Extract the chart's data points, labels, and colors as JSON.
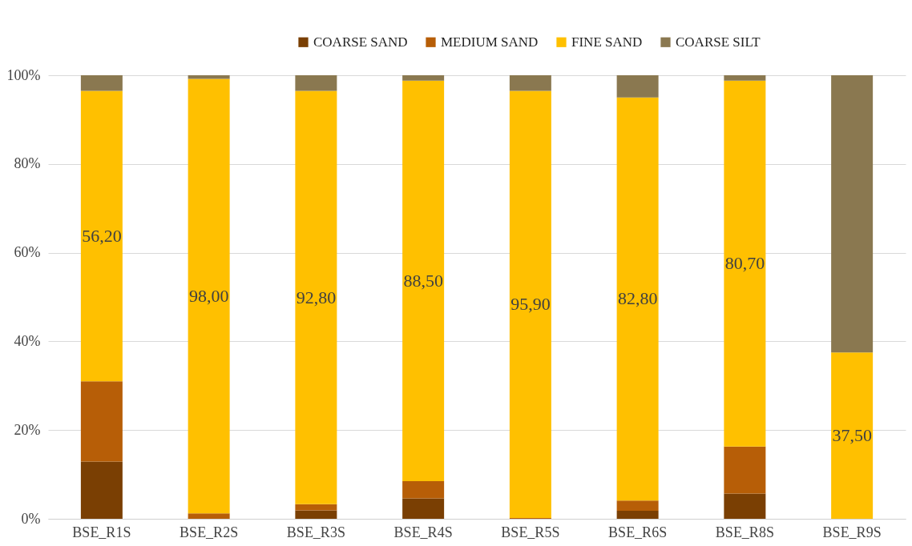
{
  "chart_data": {
    "type": "bar",
    "stacked": true,
    "categories": [
      "BSE_R1S",
      "BSE_R2S",
      "BSE_R3S",
      "BSE_R4S",
      "BSE_R5S",
      "BSE_R6S",
      "BSE_R8S",
      "BSE_R9S"
    ],
    "series": [
      {
        "name": "COARSE SAND",
        "color": "#7a3f03",
        "values": [
          12.9,
          0,
          1.9,
          4.6,
          0,
          1.8,
          5.7,
          0
        ]
      },
      {
        "name": "MEDIUM SAND",
        "color": "#b75e07",
        "values": [
          18.1,
          1.2,
          1.4,
          3.9,
          0.2,
          2.3,
          10.6,
          0
        ]
      },
      {
        "name": "FINE SAND",
        "color": "#ffc000",
        "values": [
          65.5,
          98.0,
          93.2,
          90.3,
          96.3,
          90.9,
          82.5,
          37.5
        ]
      },
      {
        "name": "COARSE SILT",
        "color": "#8a7850",
        "values": [
          3.5,
          0.8,
          3.5,
          1.2,
          3.5,
          5.0,
          1.2,
          62.5
        ]
      }
    ],
    "annotations": [
      "56,20",
      "98,00",
      "92,80",
      "88,50",
      "95,90",
      "82,80",
      "80,70",
      "37,50"
    ],
    "ylim": [
      0,
      100
    ],
    "yticks": [
      {
        "value": 0,
        "label": "0%"
      },
      {
        "value": 20,
        "label": "20%"
      },
      {
        "value": 40,
        "label": "40%"
      },
      {
        "value": 60,
        "label": "60%"
      },
      {
        "value": 80,
        "label": "80%"
      },
      {
        "value": 100,
        "label": "100%"
      }
    ],
    "grid": "y",
    "legend": "top"
  }
}
